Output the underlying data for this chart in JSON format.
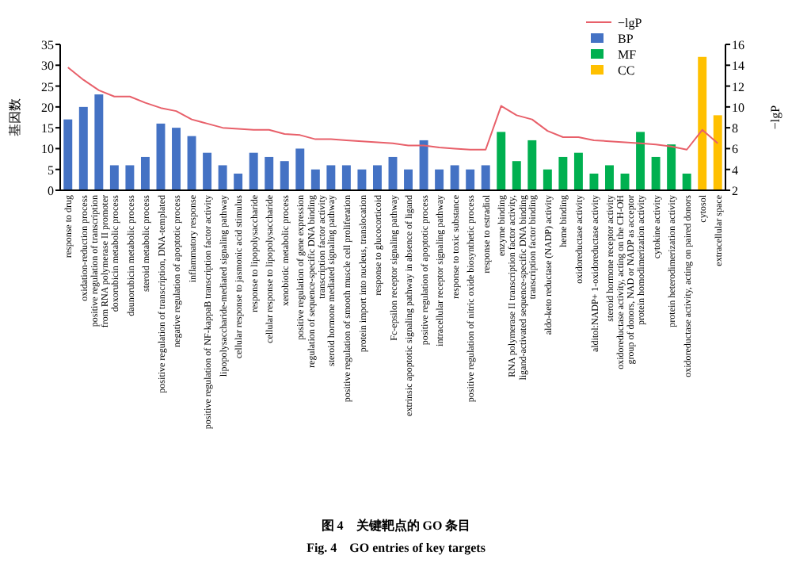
{
  "chart_data": {
    "type": "bar",
    "title": "图 4　关键靶点的 GO 条目",
    "subtitle": "Fig. 4　GO entries of key targets",
    "ylabel": "基因数",
    "y2label": "−lgP",
    "categories": [
      "response to drug",
      "oxidation-reduction process",
      "positive regulation of transcription from RNA polymerase II promoter",
      "doxorubicin metabolic process",
      "daunorubicin metabolic process",
      "steroid metabolic process",
      "positive regulation of transcription, DNA-templated",
      "negative regulation of apoptotic process",
      "inflammatory response",
      "positive regulation of NF-kappaB transcription factor activity",
      "lipopolysaccharide-mediated signaling pathway",
      "cellular response to jasmonic acid stimulus",
      "response to lipopolysaccharide",
      "cellular response to lipopolysaccharide",
      "xenobiotic metabolic process",
      "positive regulation of gene expression",
      "regulation of sequence-specific DNA binding transcription factor activity",
      "steroid hormone mediated signaling pathway",
      "positive regulation of smooth muscle cell proliferation",
      "protein import into nucleus, translocation",
      "response to glucocorticoid",
      "Fc-epsilon receptor signaling pathway",
      "extrinsic apoptotic signaling pathway in absence of ligand",
      "positive regulation of apoptotic process",
      "intracellular receptor signaling pathway",
      "response to toxic substance",
      "positive regulation of nitric oxide biosynthetic process",
      "response to estradiol",
      "enzyme binding",
      "RNA polymerase II transcription factor activity, ligand-activated sequence-specific DNA binding",
      "transcription factor binding",
      "aldo-keto reductase (NADP) activity",
      "heme binding",
      "oxidoreductase activity",
      "alditol:NADP+ 1-oxidoreductase activity",
      "steroid hormone receptor activity",
      "oxidoreductase activity, acting on the CH-OH group of donors, NAD or NADP as acceptor",
      "protein homodimerization activity",
      "cytokine activity",
      "protein heterodimerization activity",
      "oxidoreductase activity, acting on paired donors",
      "cytosol",
      "extracellular space"
    ],
    "series": [
      {
        "name": "−lgP",
        "type": "line",
        "axis": "y2",
        "color": "#e8606a",
        "values": [
          13.8,
          12.6,
          11.6,
          11.0,
          11.0,
          10.4,
          9.9,
          9.6,
          8.8,
          8.4,
          8.0,
          7.9,
          7.8,
          7.8,
          7.4,
          7.3,
          6.9,
          6.9,
          6.8,
          6.7,
          6.6,
          6.5,
          6.3,
          6.3,
          6.1,
          6.0,
          5.9,
          5.9,
          10.1,
          9.2,
          8.8,
          7.7,
          7.1,
          7.1,
          6.8,
          6.7,
          6.6,
          6.5,
          6.4,
          6.2,
          5.9,
          7.8,
          6.5
        ]
      },
      {
        "name": "BP",
        "color": "#4472c4",
        "values": [
          17,
          20,
          23,
          6,
          6,
          8,
          16,
          15,
          13,
          9,
          6,
          4,
          9,
          8,
          7,
          10,
          5,
          6,
          6,
          5,
          6,
          8,
          5,
          12,
          5,
          6,
          5,
          6,
          null,
          null,
          null,
          null,
          null,
          null,
          null,
          null,
          null,
          null,
          null,
          null,
          null,
          null,
          null
        ]
      },
      {
        "name": "MF",
        "color": "#00b050",
        "values": [
          null,
          null,
          null,
          null,
          null,
          null,
          null,
          null,
          null,
          null,
          null,
          null,
          null,
          null,
          null,
          null,
          null,
          null,
          null,
          null,
          null,
          null,
          null,
          null,
          null,
          null,
          null,
          null,
          14,
          7,
          12,
          5,
          8,
          9,
          4,
          6,
          4,
          14,
          8,
          11,
          4,
          null,
          null
        ]
      },
      {
        "name": "CC",
        "color": "#ffc000",
        "values": [
          null,
          null,
          null,
          null,
          null,
          null,
          null,
          null,
          null,
          null,
          null,
          null,
          null,
          null,
          null,
          null,
          null,
          null,
          null,
          null,
          null,
          null,
          null,
          null,
          null,
          null,
          null,
          null,
          null,
          null,
          null,
          null,
          null,
          null,
          null,
          null,
          null,
          null,
          null,
          null,
          null,
          32,
          18
        ]
      }
    ],
    "ylim": [
      0,
      35
    ],
    "yticks": [
      0,
      5,
      10,
      15,
      20,
      25,
      30,
      35
    ],
    "y2lim": [
      2,
      16
    ],
    "y2ticks": [
      2,
      4,
      6,
      8,
      10,
      12,
      14,
      16
    ],
    "legend": "top right",
    "grid": false,
    "marker": "none",
    "line_style": "solid"
  }
}
